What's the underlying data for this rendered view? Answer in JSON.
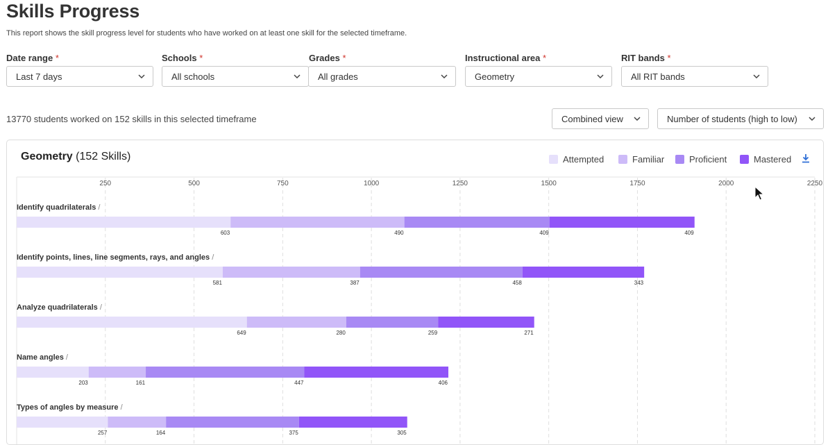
{
  "page": {
    "title": "Skills Progress",
    "subtitle": "This report shows the skill progress level for students who have worked on at least one skill for the selected timeframe."
  },
  "filters": [
    {
      "label": "Date range",
      "required_mark": "*",
      "value": "Last 7 days"
    },
    {
      "label": "Schools",
      "required_mark": "*",
      "value": "All schools"
    },
    {
      "label": "Grades",
      "required_mark": "*",
      "value": "All grades"
    },
    {
      "label": "Instructional area",
      "required_mark": "*",
      "value": "Geometry"
    },
    {
      "label": "RIT bands",
      "required_mark": "*",
      "value": "All RIT bands"
    }
  ],
  "summary": "13770 students worked on 152 skills in this selected timeframe",
  "view_select": {
    "value": "Combined view"
  },
  "sort_select": {
    "value": "Number of students (high to low)"
  },
  "panel": {
    "title_bold": "Geometry",
    "title_rest": "(152 Skills)",
    "download_icon": "download-icon"
  },
  "legend": [
    {
      "name": "Attempted",
      "color": "#e6e0fb"
    },
    {
      "name": "Familiar",
      "color": "#cdbbf8"
    },
    {
      "name": "Proficient",
      "color": "#a889f4"
    },
    {
      "name": "Mastered",
      "color": "#9155f8"
    }
  ],
  "chart_data": {
    "type": "bar",
    "orientation": "horizontal",
    "stacked": true,
    "x_ticks": [
      250,
      500,
      750,
      1000,
      1250,
      1500,
      1750,
      2000,
      2250
    ],
    "xlim": [
      0,
      2250
    ],
    "grid": true,
    "series_names": [
      "Attempted",
      "Familiar",
      "Proficient",
      "Mastered"
    ],
    "categories": [
      "Identify quadrilaterals",
      "Identify points, lines, line segments, rays, and angles",
      "Analyze quadrilaterals",
      "Name angles",
      "Types of angles by measure"
    ],
    "label_suffix": "/",
    "series": [
      {
        "name": "Attempted",
        "values": [
          603,
          581,
          649,
          203,
          257
        ]
      },
      {
        "name": "Familiar",
        "values": [
          490,
          387,
          280,
          161,
          164
        ]
      },
      {
        "name": "Proficient",
        "values": [
          409,
          458,
          259,
          447,
          375
        ]
      },
      {
        "name": "Mastered",
        "values": [
          409,
          343,
          271,
          406,
          305
        ]
      }
    ]
  }
}
